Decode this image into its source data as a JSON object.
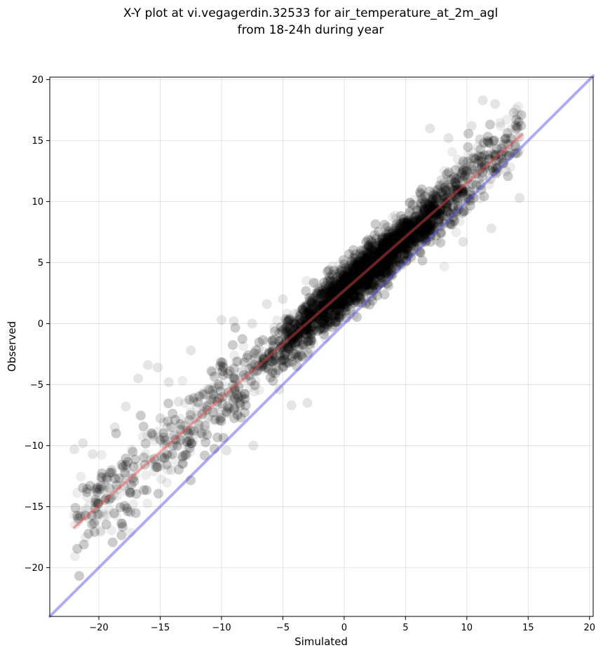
{
  "chart_data": {
    "type": "scatter",
    "title": [
      "X-Y plot at vi.vegagerdin.32533 for air_temperature_at_2m_agl",
      "from 18-24h during year"
    ],
    "xlabel": "Simulated",
    "ylabel": "Observed",
    "xlim": [
      -24,
      20.3
    ],
    "ylim": [
      -24,
      20.2
    ],
    "xticks": [
      -20,
      -15,
      -10,
      -5,
      0,
      5,
      10,
      15,
      20
    ],
    "yticks": [
      -20,
      -15,
      -10,
      -5,
      0,
      5,
      10,
      15,
      20
    ],
    "xtick_labels": [
      "−20",
      "−15",
      "−10",
      "−5",
      "0",
      "5",
      "10",
      "15",
      "20"
    ],
    "ytick_labels": [
      "−20",
      "−15",
      "−10",
      "−5",
      "0",
      "5",
      "10",
      "15",
      "20"
    ],
    "grid": true,
    "point_color": "#000000",
    "point_alpha": 0.07,
    "point_count_estimate": 6000,
    "cluster_description": "dense band of points from about (-22,-10) to (15,15), densest near (0,1) to (5,6)",
    "outlier_points": [
      [
        -22,
        -10.3
      ],
      [
        -21.3,
        -9.8
      ],
      [
        -20.5,
        -10.7
      ],
      [
        -20.3,
        -13.5
      ],
      [
        -19.8,
        -12.6
      ],
      [
        -19,
        -12
      ],
      [
        -18.5,
        -13.6
      ],
      [
        -18,
        -13.3
      ],
      [
        -17.5,
        -13.7
      ],
      [
        -18.7,
        -8.5
      ],
      [
        -17.8,
        -6.8
      ],
      [
        -16.8,
        -4.5
      ],
      [
        -16,
        -3.4
      ],
      [
        -15.2,
        -3.6
      ],
      [
        -14.3,
        -4.8
      ],
      [
        -13.5,
        -6.4
      ],
      [
        -12.5,
        -2.2
      ],
      [
        -15.6,
        -9.1
      ],
      [
        -14.1,
        -12
      ],
      [
        -13.2,
        -11.5
      ],
      [
        -9.6,
        -10.4
      ],
      [
        -7.4,
        -10
      ],
      [
        -5.3,
        -5.4
      ],
      [
        -4.3,
        -6.7
      ],
      [
        -3,
        -6.5
      ],
      [
        -10,
        0.3
      ],
      [
        -9,
        0.2
      ],
      [
        -7.5,
        0
      ],
      [
        -6.3,
        1.6
      ],
      [
        -5,
        2
      ],
      [
        11.3,
        18.3
      ],
      [
        12.3,
        18
      ],
      [
        14.3,
        15.3
      ],
      [
        14.3,
        10.3
      ],
      [
        13.2,
        12.5
      ],
      [
        12,
        7.8
      ],
      [
        10.4,
        16.2
      ],
      [
        9.7,
        6.7
      ],
      [
        7,
        16
      ],
      [
        8.5,
        15.2
      ]
    ],
    "series": [
      {
        "type": "line",
        "color": "#e84a4a",
        "alpha": 0.45,
        "x": [
          -22,
          14.5
        ],
        "y": [
          -16.7,
          15.5
        ]
      },
      {
        "type": "line",
        "color": "#4a4ae8",
        "alpha": 0.45,
        "x": [
          -24,
          20.3
        ],
        "y": [
          -24,
          20.3
        ]
      }
    ]
  }
}
